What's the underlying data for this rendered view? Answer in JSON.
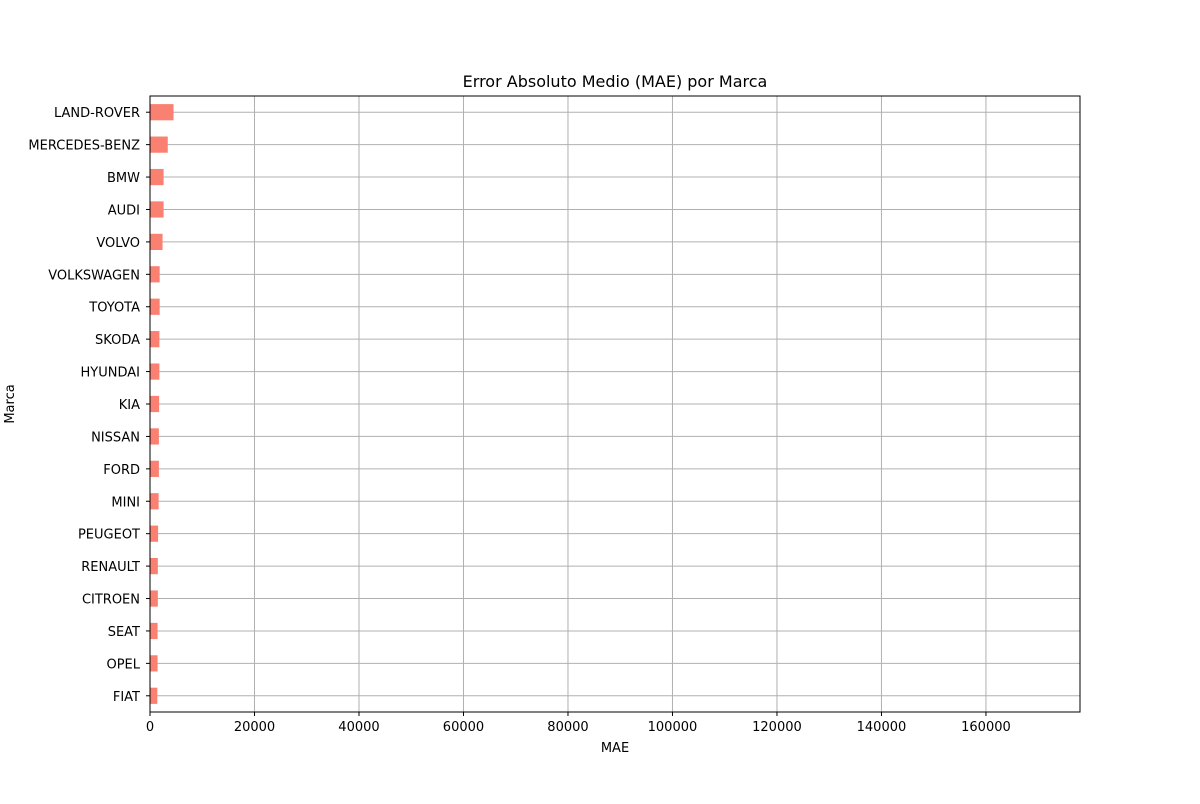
{
  "chart_data": {
    "type": "bar",
    "orientation": "horizontal",
    "title": "Error Absoluto Medio (MAE) por Marca",
    "xlabel": "MAE",
    "ylabel": "Marca",
    "xlim": [
      0,
      178000
    ],
    "xticks": [
      0,
      20000,
      40000,
      60000,
      80000,
      100000,
      120000,
      140000,
      160000
    ],
    "grid": true,
    "bar_color": "#fa8072",
    "categories": [
      "LAND-ROVER",
      "MERCEDES-BENZ",
      "BMW",
      "AUDI",
      "VOLVO",
      "VOLKSWAGEN",
      "TOYOTA",
      "SKODA",
      "HYUNDAI",
      "KIA",
      "NISSAN",
      "FORD",
      "MINI",
      "PEUGEOT",
      "RENAULT",
      "CITROEN",
      "SEAT",
      "OPEL",
      "FIAT"
    ],
    "values": [
      4500,
      3400,
      2600,
      2600,
      2400,
      1850,
      1850,
      1800,
      1800,
      1750,
      1700,
      1700,
      1650,
      1550,
      1500,
      1500,
      1450,
      1450,
      1400
    ]
  }
}
